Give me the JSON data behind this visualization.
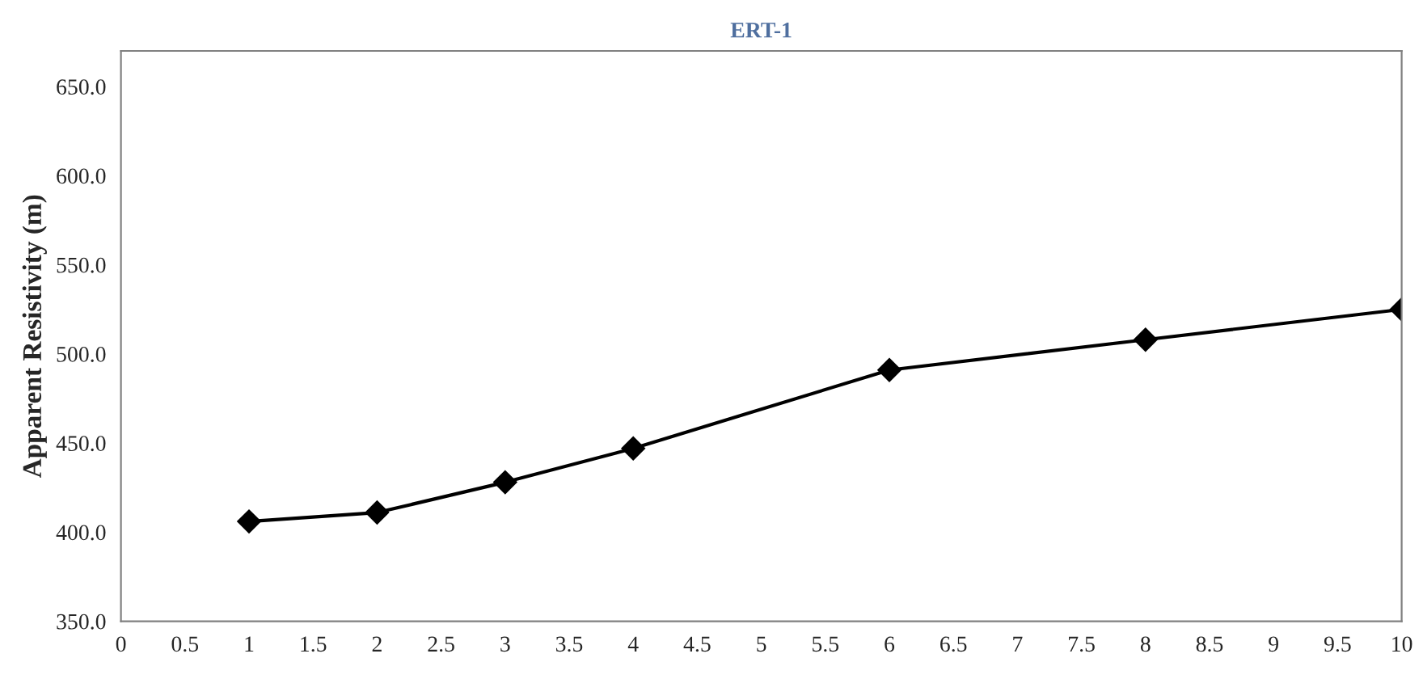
{
  "chart_data": {
    "type": "line",
    "title": "ERT-1",
    "ylabel": "Apparent Resistivity (m)",
    "x": [
      1,
      2,
      3,
      4,
      6,
      8,
      10
    ],
    "series": [
      {
        "color": "#000000",
        "values": [
          406,
          411,
          428,
          447,
          491,
          508,
          525
        ]
      }
    ],
    "xlim": [
      0,
      10
    ],
    "xticks": [
      0,
      0.5,
      1,
      1.5,
      2,
      2.5,
      3,
      3.5,
      4,
      4.5,
      5,
      5.5,
      6,
      6.5,
      7,
      7.5,
      8,
      8.5,
      9,
      9.5,
      10
    ],
    "ylim": [
      350,
      670
    ],
    "yticks": [
      {
        "value": 350,
        "label": "350.0"
      },
      {
        "value": 400,
        "label": "400.0"
      },
      {
        "value": 450,
        "label": "450.0"
      },
      {
        "value": 500,
        "label": "500.0"
      },
      {
        "value": 550,
        "label": "550.0"
      },
      {
        "value": 600,
        "label": "600.0"
      },
      {
        "value": 650,
        "label": "650.0"
      }
    ],
    "grid": false,
    "legend": false,
    "marker": "diamond",
    "line_style": "solid"
  }
}
